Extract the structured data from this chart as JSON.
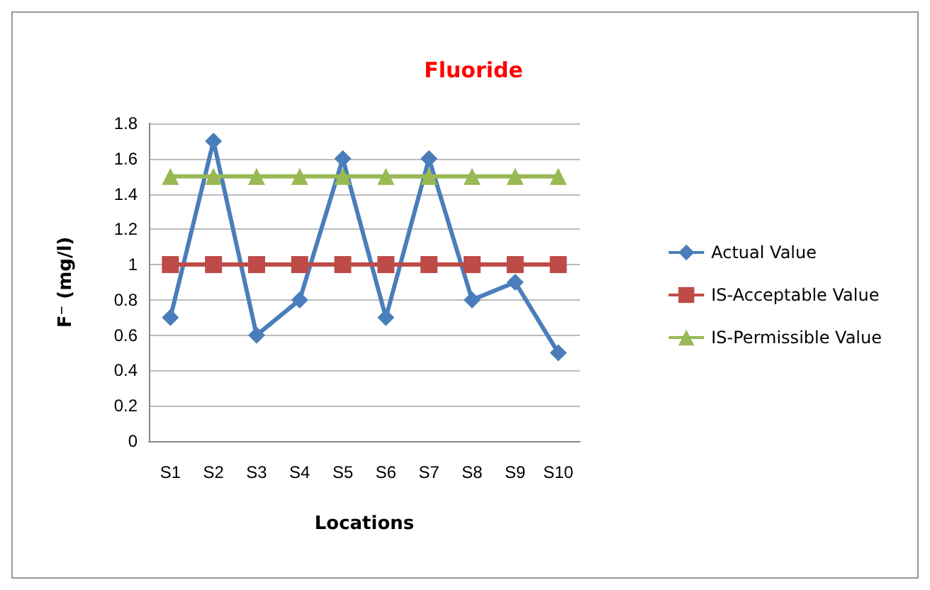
{
  "chart_data": {
    "type": "line",
    "title": "Fluoride",
    "xlabel": "Locations",
    "ylabel": "F⁻ (mg/l)",
    "categories": [
      "S1",
      "S2",
      "S3",
      "S4",
      "S5",
      "S6",
      "S7",
      "S8",
      "S9",
      "S10"
    ],
    "series": [
      {
        "name": "Actual Value",
        "color": "#4a7ebb",
        "marker": "diamond",
        "values": [
          0.7,
          1.7,
          0.6,
          0.8,
          1.6,
          0.7,
          1.6,
          0.8,
          0.9,
          0.5
        ]
      },
      {
        "name": "IS-Acceptable Value",
        "color": "#be4b48",
        "marker": "square",
        "values": [
          1,
          1,
          1,
          1,
          1,
          1,
          1,
          1,
          1,
          1
        ]
      },
      {
        "name": "IS-Permissible Value",
        "color": "#98b954",
        "marker": "triangle",
        "values": [
          1.5,
          1.5,
          1.5,
          1.5,
          1.5,
          1.5,
          1.5,
          1.5,
          1.5,
          1.5
        ]
      }
    ],
    "ylim": [
      0,
      1.8
    ],
    "yticks": [
      0,
      0.2,
      0.4,
      0.6,
      0.8,
      1,
      1.2,
      1.4,
      1.6,
      1.8
    ],
    "grid": "y",
    "legend": "right",
    "line_style": "solid"
  }
}
